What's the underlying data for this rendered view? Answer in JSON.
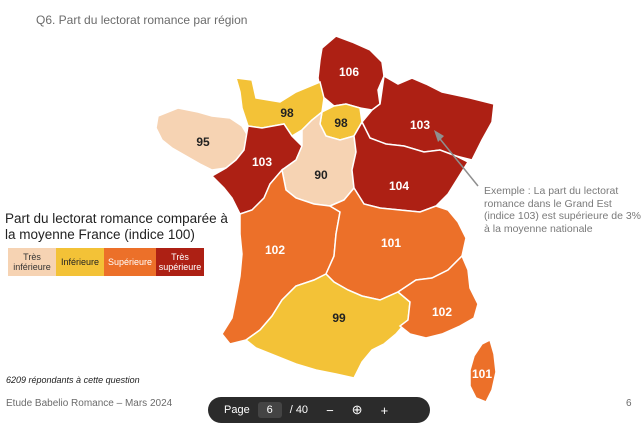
{
  "slide_title": "Q6. Part du lectorat romance par région",
  "legend": {
    "title": "Part du lectorat romance comparée à la moyenne France (indice 100)",
    "items": [
      {
        "label": "Très inférieure",
        "color": "#f6d3b3"
      },
      {
        "label": "Inférieure",
        "color": "#f3c237"
      },
      {
        "label": "Supérieure",
        "color": "#ec7029"
      },
      {
        "label": "Très supérieure",
        "color": "#ad2014"
      }
    ]
  },
  "regions": {
    "hauts_de_france": {
      "value": "106",
      "color": "#ad2014"
    },
    "normandie": {
      "value": "98",
      "color": "#f3c237"
    },
    "ile_de_france": {
      "value": "98",
      "color": "#f3c237"
    },
    "grand_est": {
      "value": "103",
      "color": "#ad2014"
    },
    "bretagne": {
      "value": "95",
      "color": "#f6d3b3"
    },
    "pays_de_la_loire": {
      "value": "103",
      "color": "#ad2014"
    },
    "centre_val_de_loire": {
      "value": "90",
      "color": "#f6d3b3"
    },
    "bourgogne_franche_comte": {
      "value": "104",
      "color": "#ad2014"
    },
    "nouvelle_aquitaine": {
      "value": "102",
      "color": "#ec7029"
    },
    "auvergne_rhone_alpes": {
      "value": "101",
      "color": "#ec7029"
    },
    "occitanie": {
      "value": "99",
      "color": "#f3c237"
    },
    "provence_alpes_cote_d_azur": {
      "value": "102",
      "color": "#ec7029"
    },
    "corse": {
      "value": "101",
      "color": "#ec7029"
    }
  },
  "annotation": "Exemple : La part du lectorat romance dans le Grand Est (indice 103) est supérieure de 3% à la moyenne nationale",
  "respondents_note": "6209 répondants à cette question",
  "footer": "Etude Babelio Romance – Mars 2024",
  "page_number": "6",
  "page_bar": {
    "label": "Page",
    "current": "6",
    "total": "/ 40"
  }
}
